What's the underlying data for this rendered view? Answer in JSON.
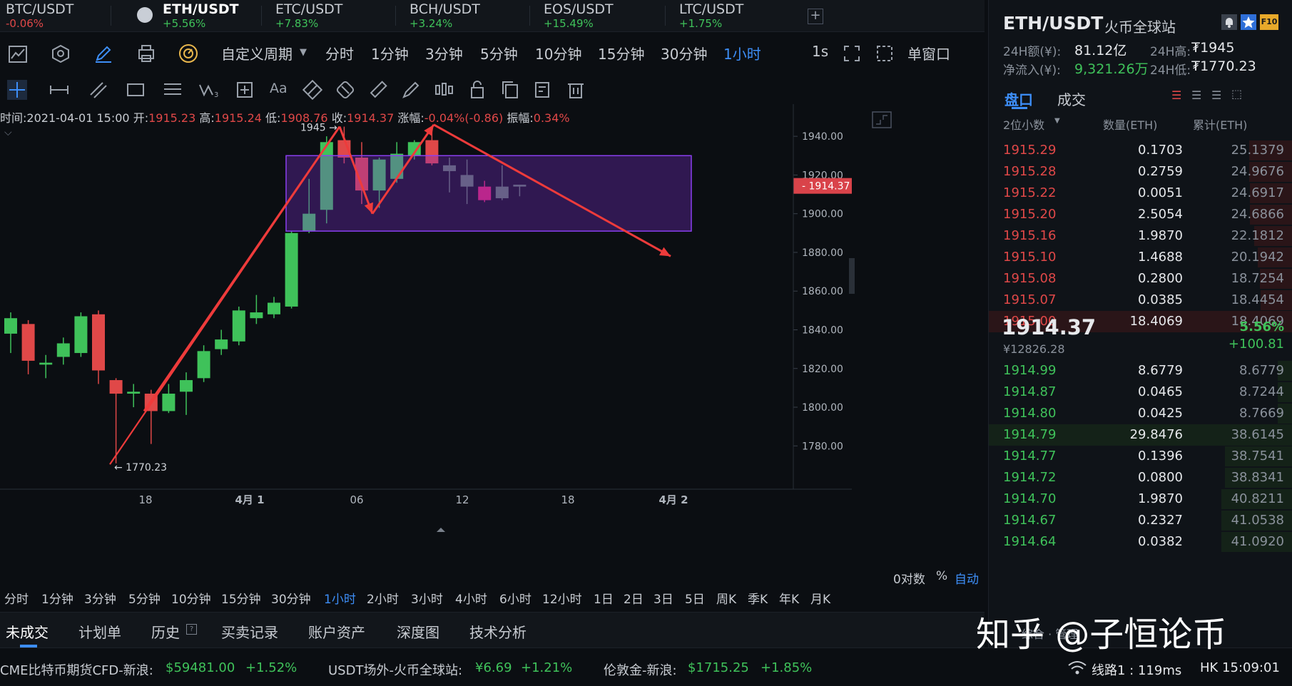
{
  "ticker_tabs": [
    {
      "symbol": "BTC/USDT",
      "change": "-0.06%",
      "dir": "down"
    },
    {
      "symbol": "ETH/USDT",
      "change": "+5.56%",
      "dir": "up",
      "active": true
    },
    {
      "symbol": "ETC/USDT",
      "change": "+7.83%",
      "dir": "up"
    },
    {
      "symbol": "BCH/USDT",
      "change": "+3.24%",
      "dir": "up"
    },
    {
      "symbol": "EOS/USDT",
      "change": "+15.49%",
      "dir": "up"
    },
    {
      "symbol": "LTC/USDT",
      "change": "+1.75%",
      "dir": "up"
    }
  ],
  "add_tab": "+",
  "toolbar": {
    "custom_period": "自定义周期",
    "periods": [
      "分时",
      "1分钟",
      "3分钟",
      "5分钟",
      "10分钟",
      "15分钟",
      "30分钟",
      "1小时"
    ],
    "active_period": "1小时",
    "interval": "1s",
    "window_mode": "单窗口"
  },
  "ohlc": {
    "time_label": "时间:",
    "time": "2021-04-01 15:00",
    "open_label": "开:",
    "open": "1915.23",
    "high_label": "高:",
    "high": "1915.24",
    "low_label": "低:",
    "low": "1908.76",
    "close_label": "收:",
    "close": "1914.37",
    "change_label": "涨幅:",
    "change": "-0.04%(-0.86)",
    "amp_label": "振幅:",
    "amp": "0.34%"
  },
  "chart_data": {
    "type": "candlestick",
    "x_ticks": [
      "18",
      "4月 1",
      "06",
      "12",
      "18",
      "4月 2"
    ],
    "y_ticks": [
      1780,
      1800,
      1820,
      1840,
      1860,
      1880,
      1900,
      1920,
      1940
    ],
    "ylim": [
      1765,
      1950
    ],
    "last_price": "1914.37",
    "high_marker": "1945 →",
    "low_marker": "← 1770.23",
    "candles": [
      {
        "o": 1838,
        "c": 1846,
        "h": 1849,
        "l": 1828
      },
      {
        "o": 1843,
        "c": 1824,
        "h": 1845,
        "l": 1817
      },
      {
        "o": 1822,
        "c": 1823,
        "h": 1827,
        "l": 1815
      },
      {
        "o": 1826,
        "c": 1833,
        "h": 1836,
        "l": 1822
      },
      {
        "o": 1828,
        "c": 1847,
        "h": 1849,
        "l": 1826
      },
      {
        "o": 1848,
        "c": 1819,
        "h": 1850,
        "l": 1812
      },
      {
        "o": 1814,
        "c": 1807,
        "h": 1815,
        "l": 1771
      },
      {
        "o": 1807,
        "c": 1808,
        "h": 1812,
        "l": 1800
      },
      {
        "o": 1807,
        "c": 1798,
        "h": 1809,
        "l": 1781
      },
      {
        "o": 1798,
        "c": 1807,
        "h": 1812,
        "l": 1797
      },
      {
        "o": 1808,
        "c": 1814,
        "h": 1818,
        "l": 1796
      },
      {
        "o": 1815,
        "c": 1829,
        "h": 1832,
        "l": 1813
      },
      {
        "o": 1830,
        "c": 1835,
        "h": 1840,
        "l": 1827
      },
      {
        "o": 1834,
        "c": 1850,
        "h": 1852,
        "l": 1832
      },
      {
        "o": 1846,
        "c": 1849,
        "h": 1858,
        "l": 1843
      },
      {
        "o": 1848,
        "c": 1854,
        "h": 1857,
        "l": 1846
      },
      {
        "o": 1852,
        "c": 1890,
        "h": 1891,
        "l": 1851
      },
      {
        "o": 1891,
        "c": 1900,
        "h": 1918,
        "l": 1890
      },
      {
        "o": 1902,
        "c": 1937,
        "h": 1940,
        "l": 1895
      },
      {
        "o": 1938,
        "c": 1929,
        "h": 1945,
        "l": 1926
      },
      {
        "o": 1929,
        "c": 1912,
        "h": 1937,
        "l": 1905
      },
      {
        "o": 1912,
        "c": 1928,
        "h": 1929,
        "l": 1903
      },
      {
        "o": 1918,
        "c": 1931,
        "h": 1937,
        "l": 1916
      },
      {
        "o": 1930,
        "c": 1937,
        "h": 1938,
        "l": 1928
      },
      {
        "o": 1938,
        "c": 1926,
        "h": 1944,
        "l": 1925
      },
      {
        "o": 1925,
        "c": 1922,
        "h": 1929,
        "l": 1911
      },
      {
        "o": 1920,
        "c": 1914,
        "h": 1928,
        "l": 1905
      },
      {
        "o": 1914,
        "c": 1907,
        "h": 1917,
        "l": 1906
      },
      {
        "o": 1908,
        "c": 1914,
        "h": 1925,
        "l": 1907
      },
      {
        "o": 1915,
        "c": 1914,
        "h": 1915,
        "l": 1909
      }
    ]
  },
  "period_bar": {
    "items": [
      "分时",
      "1分钟",
      "3分钟",
      "5分钟",
      "10分钟",
      "15分钟",
      "30分钟",
      "1小时",
      "2小时",
      "3小时",
      "4小时",
      "6小时",
      "12小时",
      "1日",
      "2日",
      "3日",
      "5日",
      "周K",
      "季K",
      "年K",
      "月K"
    ],
    "active": "1小时",
    "log_label": "0对数",
    "pct_label": "%",
    "auto_label": "自动"
  },
  "bottom_tabs": [
    "未成交",
    "计划单",
    "历史",
    "买卖记录",
    "账户资产",
    "深度图",
    "技术分析"
  ],
  "status_bar": [
    {
      "name": "CME比特币期货CFD-新浪:",
      "price": "$59481.00",
      "chg": "+1.52%"
    },
    {
      "name": "USDT场外-火币全球站:",
      "price": "¥6.69",
      "chg": "+1.21%"
    },
    {
      "name": "伦敦金-新浪:",
      "price": "$1715.25",
      "chg": "+1.85%"
    }
  ],
  "status_right": {
    "line": "线路1 : 119ms",
    "clock": "HK 15:09:01"
  },
  "panel": {
    "pair": "ETH/USDT",
    "exchange": "火币全球站",
    "vol_label": "24H额(¥):",
    "vol": "81.12亿",
    "high_label": "24H高:",
    "high": "₮1945",
    "inflow_label": "净流入(¥):",
    "inflow": "9,321.26万",
    "low_label": "24H低:",
    "low": "₮1770.23",
    "tab_book": "盘口",
    "tab_trades": "成交",
    "decimals": "2位小数",
    "col_qty": "数量(ETH)",
    "col_cum": "累计(ETH)",
    "asks": [
      {
        "p": "1915.29",
        "q": "0.1703",
        "c": "25.1379"
      },
      {
        "p": "1915.28",
        "q": "0.2759",
        "c": "24.9676"
      },
      {
        "p": "1915.22",
        "q": "0.0051",
        "c": "24.6917"
      },
      {
        "p": "1915.20",
        "q": "2.5054",
        "c": "24.6866"
      },
      {
        "p": "1915.16",
        "q": "1.9870",
        "c": "22.1812"
      },
      {
        "p": "1915.10",
        "q": "1.4688",
        "c": "20.1942"
      },
      {
        "p": "1915.08",
        "q": "0.2800",
        "c": "18.7254"
      },
      {
        "p": "1915.07",
        "q": "0.0385",
        "c": "18.4454"
      },
      {
        "p": "1915.00",
        "q": "18.4069",
        "c": "18.4069"
      }
    ],
    "last": "1914.37",
    "last_cny": "¥12826.28",
    "pct": "5.56%",
    "abs_chg": "+100.81",
    "bids": [
      {
        "p": "1914.99",
        "q": "8.6779",
        "c": "8.6779"
      },
      {
        "p": "1914.87",
        "q": "0.0465",
        "c": "8.7244"
      },
      {
        "p": "1914.80",
        "q": "0.0425",
        "c": "8.7669"
      },
      {
        "p": "1914.79",
        "q": "29.8476",
        "c": "38.6145"
      },
      {
        "p": "1914.77",
        "q": "0.1396",
        "c": "38.7541"
      },
      {
        "p": "1914.72",
        "q": "0.0800",
        "c": "38.8341"
      },
      {
        "p": "1914.70",
        "q": "1.9870",
        "c": "40.8211"
      },
      {
        "p": "1914.67",
        "q": "0.2327",
        "c": "41.0538"
      },
      {
        "p": "1914.64",
        "q": "0.0382",
        "c": "41.0920"
      }
    ],
    "footer": "综合 · 管理"
  },
  "watermark": "知乎 @子恒论币",
  "colors": {
    "up": "#3fc25a",
    "down": "#e04848",
    "accent": "#3d8ef7",
    "box": "#7b2fd0"
  }
}
